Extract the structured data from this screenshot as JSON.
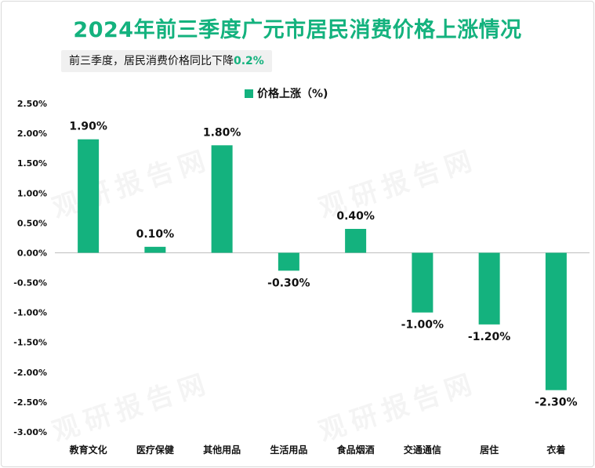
{
  "title": "2024年前三季度广元市居民消费价格上涨情况",
  "subtitle": {
    "text": "前三季度，居民消费价格同比下降",
    "highlight": "0.2%"
  },
  "watermark": "观研报告网",
  "colors": {
    "accent": "#14b27e",
    "bar": "#14b27e",
    "axis": "#bfbfbf"
  },
  "chart_data": {
    "type": "bar",
    "categories": [
      "教育文化",
      "医疗保健",
      "其他用品",
      "生活用品",
      "食品烟酒",
      "交通通信",
      "居住",
      "衣着"
    ],
    "series": [
      {
        "name": "价格上涨（%)",
        "values": [
          1.9,
          0.1,
          1.8,
          -0.3,
          0.4,
          -1.0,
          -1.2,
          -2.3
        ]
      }
    ],
    "data_labels": [
      "1.90%",
      "0.10%",
      "1.80%",
      "-0.30%",
      "0.40%",
      "-1.00%",
      "-1.20%",
      "-2.30%"
    ],
    "yticks": [
      "2.50%",
      "2.00%",
      "1.50%",
      "1.00%",
      "0.50%",
      "0.00%",
      "-0.50%",
      "-1.00%",
      "-1.50%",
      "-2.00%",
      "-2.50%",
      "-3.00%"
    ],
    "ylim": [
      -3.0,
      2.5
    ],
    "legend_position": "top-center",
    "grid": false
  }
}
